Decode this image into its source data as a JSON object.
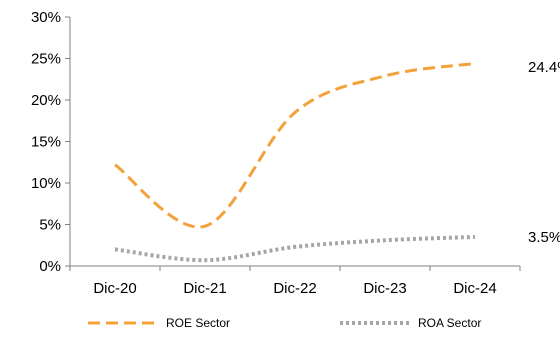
{
  "chart_data": {
    "type": "line",
    "categories": [
      "Dic-20",
      "Dic-21",
      "Dic-22",
      "Dic-23",
      "Dic-24"
    ],
    "ylim": [
      0,
      30
    ],
    "y_ticks": [
      {
        "value": 0,
        "label": "0%"
      },
      {
        "value": 5,
        "label": "5%"
      },
      {
        "value": 10,
        "label": "10%"
      },
      {
        "value": 15,
        "label": "15%"
      },
      {
        "value": 20,
        "label": "20%"
      },
      {
        "value": 25,
        "label": "25%"
      },
      {
        "value": 30,
        "label": "30%"
      }
    ],
    "grid": false,
    "legend_position": "bottom",
    "series": [
      {
        "name": "ROE Sector",
        "color": "#F4A13A",
        "style": "dashed",
        "values": [
          12.2,
          4.8,
          18.5,
          22.9,
          24.4
        ],
        "end_label": "24.4%"
      },
      {
        "name": "ROA Sector",
        "color": "#A6A6A6",
        "style": "dotted",
        "values": [
          2.0,
          0.7,
          2.3,
          3.1,
          3.5
        ],
        "end_label": "3.5%"
      }
    ]
  }
}
